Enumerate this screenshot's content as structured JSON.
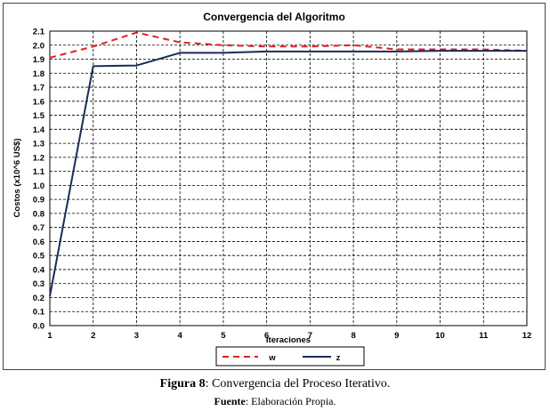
{
  "chart_data": {
    "type": "line",
    "title": "Convergencia del Algoritmo",
    "xlabel": "Iteraciones",
    "ylabel": "Costos (x10^6 US$)",
    "x": [
      1,
      2,
      3,
      4,
      5,
      6,
      7,
      8,
      9,
      10,
      11,
      12
    ],
    "xlim": [
      1,
      12
    ],
    "ylim": [
      0.0,
      2.1
    ],
    "yticks": [
      "0.0",
      "0.1",
      "0.2",
      "0.3",
      "0.4",
      "0.5",
      "0.6",
      "0.7",
      "0.8",
      "0.9",
      "1.0",
      "1.1",
      "1.2",
      "1.3",
      "1.4",
      "1.5",
      "1.6",
      "1.7",
      "1.8",
      "1.9",
      "2.0",
      "2.1"
    ],
    "grid": true,
    "legend_position": "bottom",
    "series": [
      {
        "name": "w",
        "color": "#e02020",
        "style": "dashed",
        "values": [
          1.91,
          1.99,
          2.09,
          2.02,
          2.0,
          1.99,
          1.99,
          2.0,
          1.97,
          1.97,
          1.97,
          1.96
        ]
      },
      {
        "name": "z",
        "color": "#1a2a5a",
        "style": "solid",
        "values": [
          0.21,
          1.85,
          1.855,
          1.945,
          1.945,
          1.955,
          1.955,
          1.955,
          1.955,
          1.96,
          1.96,
          1.96
        ]
      }
    ]
  },
  "caption": {
    "label": "Figura 8",
    "text": ": Convergencia del Proceso Iterativo."
  },
  "source": {
    "label": "Fuente",
    "text": ": Elaboración Propia."
  }
}
